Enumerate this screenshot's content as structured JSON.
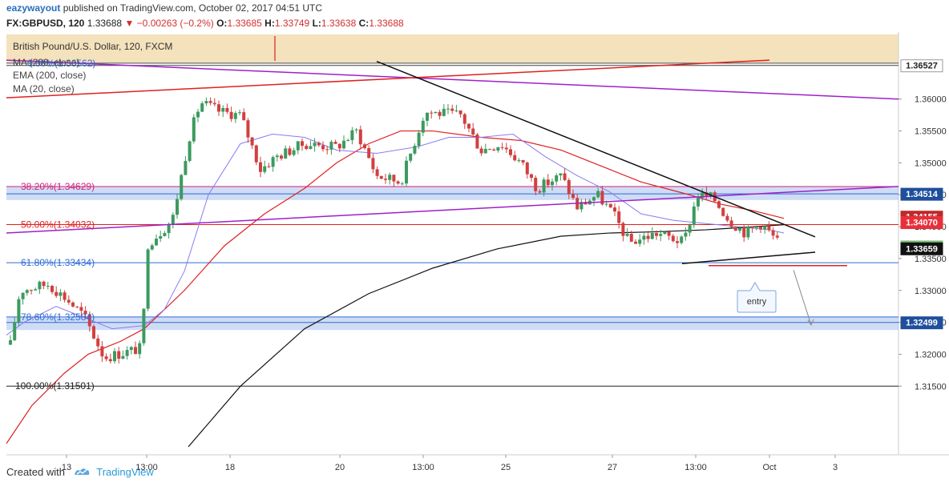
{
  "header": {
    "author": "eazywayout",
    "published_text": "published on TradingView.com, October 02, 2017 04:51 UTC",
    "symbol": "FX:GBPUSD, 120",
    "last": "1.33688",
    "change": "−0.00263 (−0.2%)",
    "o_label": "O:",
    "o_value": "1.33685",
    "h_label": "H:",
    "h_value": "1.33749",
    "l_label": "L:",
    "l_value": "1.33638",
    "c_label": "C:",
    "c_value": "1.33688"
  },
  "legend": {
    "title": "British Pound/U.S. Dollar, 120, FXCM",
    "ma200": "MA (200, close)",
    "ema200": "EMA (200, close)",
    "ma20": "MA (20, close)"
  },
  "fib_labels": [
    {
      "text": "0.00%(1.36562)",
      "price": 1.36562
    },
    {
      "text": "38.20%(1.34629)",
      "price": 1.34629
    },
    {
      "text": "50.00%(1.34032)",
      "price": 1.34032
    },
    {
      "text": "61.80%(1.33434)",
      "price": 1.33434
    },
    {
      "text": "78.60%(1.32584)",
      "price": 1.32584
    },
    {
      "text": "100.00%(1.31501)",
      "price": 1.31501
    }
  ],
  "price_axis": {
    "ticks": [
      "1.36000",
      "1.35500",
      "1.35000",
      "1.34500",
      "1.34000",
      "1.33500",
      "1.33000",
      "1.32500",
      "1.32000",
      "1.31500"
    ],
    "tick_values": [
      1.36,
      1.355,
      1.35,
      1.345,
      1.34,
      1.335,
      1.33,
      1.325,
      1.32,
      1.315
    ],
    "range": [
      1.3055,
      1.3695
    ],
    "badges": [
      {
        "text": "1.36527",
        "price": 1.36527,
        "bg": "#ffffff",
        "color": "#222222",
        "border": "#999999"
      },
      {
        "text": "1.34514",
        "price": 1.34514,
        "bg": "#1f4f9c",
        "color": "#ffffff"
      },
      {
        "text": "1.34155",
        "price": 1.34155,
        "bg": "#c0282a",
        "color": "#ffffff"
      },
      {
        "text": "1.34070",
        "price": 1.3407,
        "bg": "#e8303a",
        "color": "#ffffff"
      },
      {
        "text": "1.33688",
        "price": 1.33688,
        "bg": "#7fbf7a",
        "color": "#ffffff"
      },
      {
        "text": "1.33659",
        "price": 1.33659,
        "bg": "#111111",
        "color": "#ffffff"
      },
      {
        "text": "1.32499",
        "price": 1.32499,
        "bg": "#1f4f9c",
        "color": "#ffffff"
      }
    ]
  },
  "time_axis": {
    "labels": [
      "13",
      "13:00",
      "18",
      "20",
      "13:00",
      "25",
      "27",
      "13:00",
      "Oct",
      "3"
    ]
  },
  "annotation": {
    "entry": "entry"
  },
  "colors": {
    "bull": "#3c9a5f",
    "bear": "#d23f3f",
    "ma20": "#8a7cf0",
    "ema200": "#e02020",
    "ma200": "#111111",
    "purple_trend": "#a020c8",
    "fib_line": "#2e6bd6",
    "zone": "#a8c0ec"
  },
  "footer": {
    "created_with": "Created with",
    "brand": "TradingView"
  }
}
